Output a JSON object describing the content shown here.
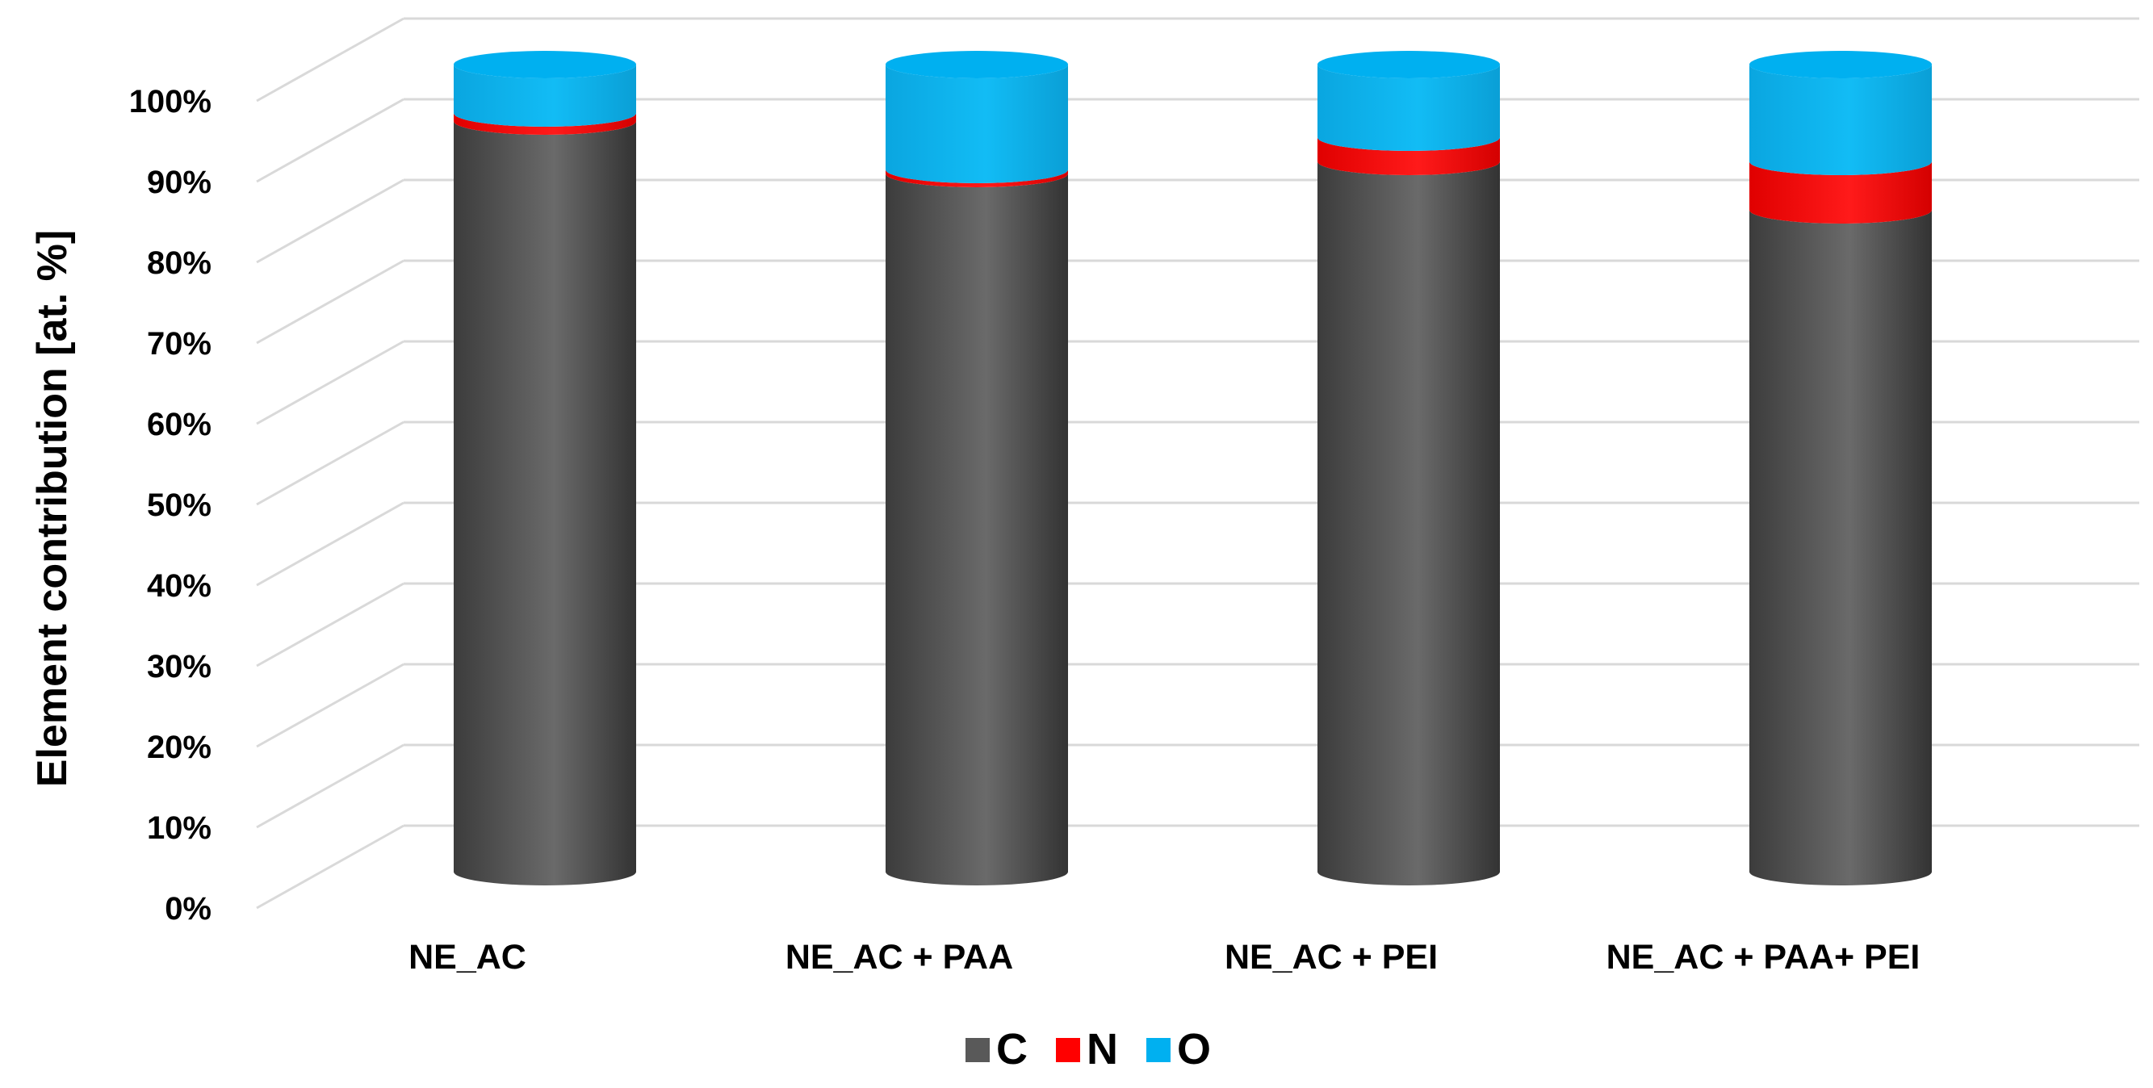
{
  "chart_data": {
    "type": "bar",
    "stacked": true,
    "style": "3d-cylinder",
    "categories": [
      "NE_AC",
      "NE_AC + PAA",
      "NE_AC + PEI",
      "NE_AC + PAA+ PEI"
    ],
    "series": [
      {
        "name": "C",
        "values": [
          93.0,
          86.5,
          88.0,
          82.0
        ],
        "color": "#595959"
      },
      {
        "name": "N",
        "values": [
          1.0,
          0.5,
          3.0,
          6.0
        ],
        "color": "#ff0000"
      },
      {
        "name": "O",
        "values": [
          6.0,
          13.0,
          9.0,
          12.0
        ],
        "color": "#00b0f0"
      }
    ],
    "title": "",
    "xlabel": "",
    "ylabel": "Element contribution [at. %]",
    "ylim": [
      0,
      100
    ],
    "yticks": [
      "0%",
      "10%",
      "20%",
      "30%",
      "40%",
      "50%",
      "60%",
      "70%",
      "80%",
      "90%",
      "100%"
    ],
    "grid": true,
    "legend_position": "bottom"
  }
}
